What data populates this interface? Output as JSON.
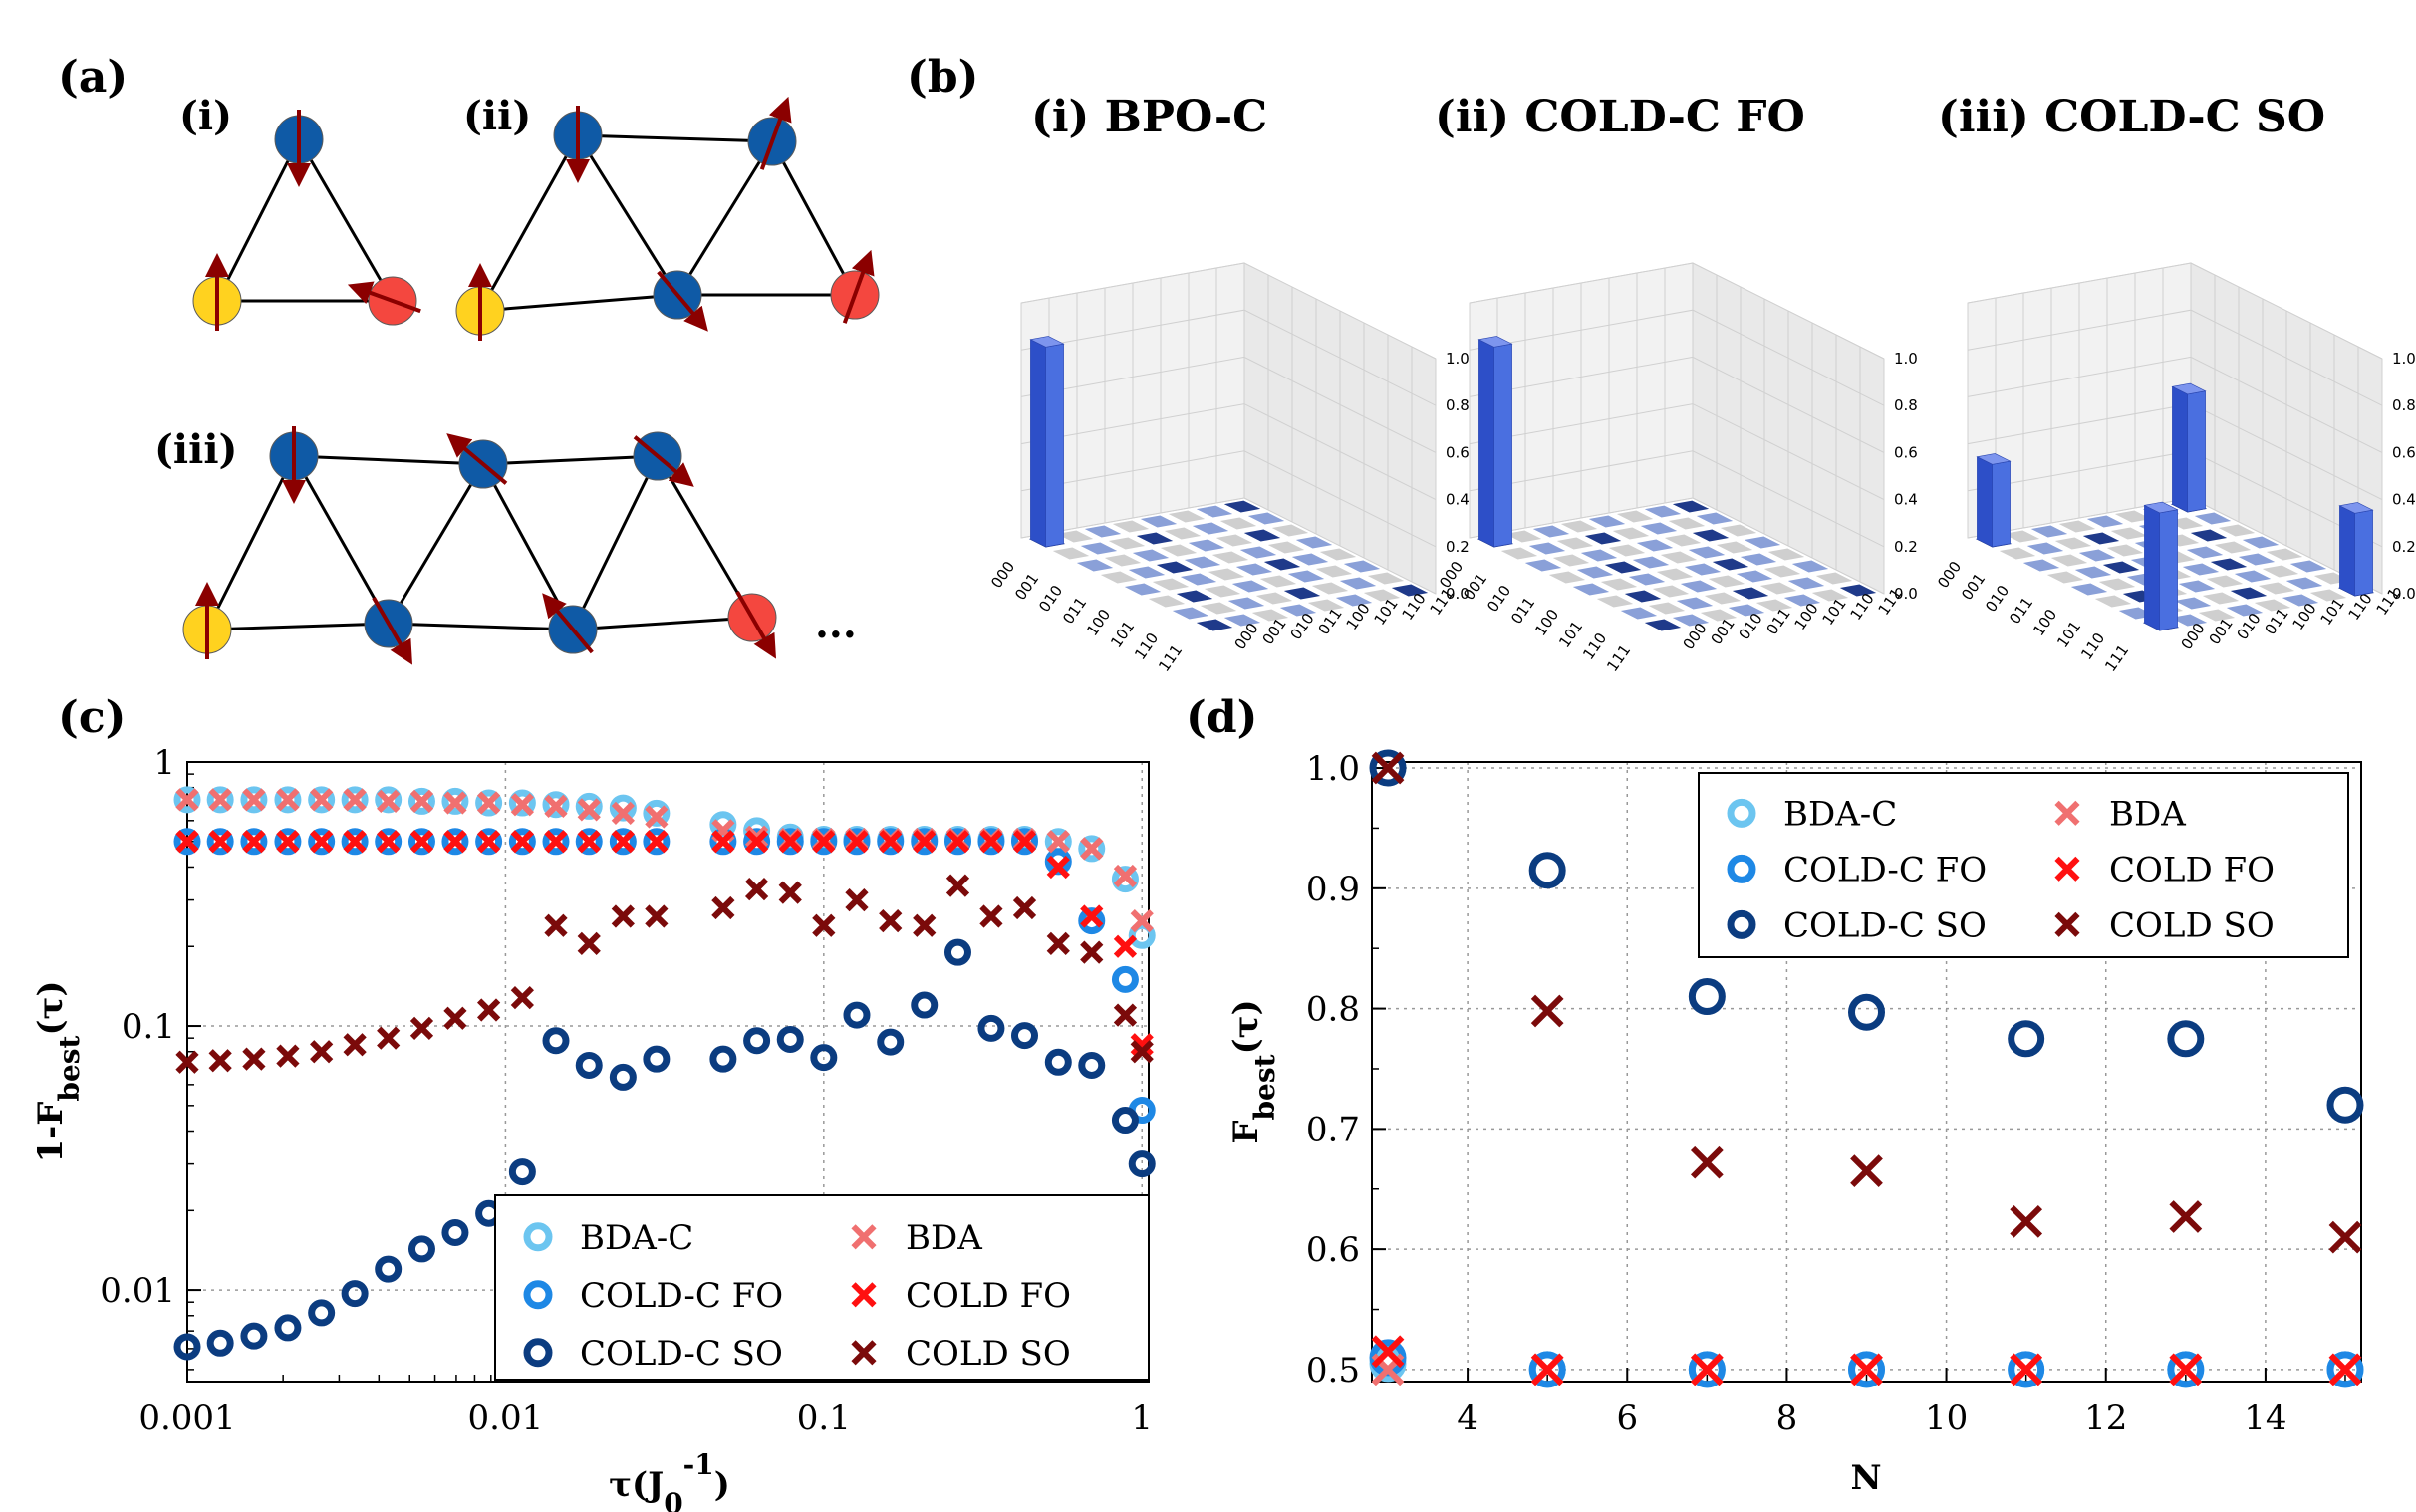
{
  "panels": {
    "a": {
      "label": "(a)",
      "subs": [
        "(i)",
        "(ii)",
        "(iii)"
      ],
      "ellipsis": "...",
      "colors": {
        "yellow": "#FFD21F",
        "blue": "#0F5AA6",
        "red": "#F4473F",
        "arrow": "#8B0000"
      }
    },
    "b": {
      "label": "(b)",
      "titles": [
        "(i) BPO-C",
        "(ii) COLD-C FO",
        "(iii) COLD-C SO"
      ],
      "xticks": [
        "000",
        "001",
        "010",
        "011",
        "100",
        "101",
        "110",
        "111"
      ],
      "yticks": [
        "000",
        "001",
        "010",
        "011",
        "100",
        "101",
        "110",
        "111"
      ],
      "zticks": [
        "0.0",
        "0.2",
        "0.4",
        "0.6",
        "0.8",
        "1.0"
      ]
    },
    "c": {
      "label": "(c)"
    },
    "d": {
      "label": "(d)"
    }
  },
  "chart_data": [
    {
      "type": "bar",
      "panel": "b-i",
      "title": "(i) BPO-C",
      "bars": [
        {
          "row": "000",
          "col": "000",
          "value": 0.85
        }
      ],
      "zlim": [
        0,
        1
      ]
    },
    {
      "type": "bar",
      "panel": "b-ii",
      "title": "(ii) COLD-C FO",
      "bars": [
        {
          "row": "000",
          "col": "000",
          "value": 0.85
        }
      ],
      "zlim": [
        0,
        1
      ]
    },
    {
      "type": "bar",
      "panel": "b-iii",
      "title": "(iii) COLD-C SO",
      "bars": [
        {
          "row": "000",
          "col": "000",
          "value": 0.35
        },
        {
          "row": "111",
          "col": "000",
          "value": 0.5
        },
        {
          "row": "000",
          "col": "111",
          "value": 0.5
        },
        {
          "row": "111",
          "col": "111",
          "value": 0.35
        }
      ],
      "zlim": [
        0,
        1
      ]
    },
    {
      "type": "scatter",
      "panel": "c",
      "xlabel": "τ(J0-1)",
      "ylabel": "1-Fbest(τ)",
      "xscale": "log",
      "yscale": "log",
      "xlim": [
        0.001,
        1.05
      ],
      "ylim": [
        0.0045,
        1.0
      ],
      "xticks": [
        {
          "v": 0.001,
          "label": "0.001"
        },
        {
          "v": 0.01,
          "label": "0.01"
        },
        {
          "v": 0.1,
          "label": "0.1"
        },
        {
          "v": 1,
          "label": "1"
        }
      ],
      "yticks": [
        {
          "v": 0.01,
          "label": "0.01"
        },
        {
          "v": 0.1,
          "label": "0.1"
        },
        {
          "v": 1,
          "label": "1"
        }
      ],
      "legend": "lower-right",
      "x": [
        0.001,
        0.00127,
        0.00162,
        0.00207,
        0.00264,
        0.00336,
        0.00428,
        0.00546,
        0.00695,
        0.00886,
        0.0113,
        0.0144,
        0.0183,
        0.0234,
        0.0298,
        0.0483,
        0.0616,
        0.0785,
        0.1,
        0.127,
        0.162,
        0.207,
        0.264,
        0.336,
        0.428,
        0.546,
        0.695,
        0.886,
        1.0
      ],
      "series": [
        {
          "name": "BDA-C",
          "marker": "circle",
          "color": "#6CC5F0",
          "values": [
            0.72,
            0.72,
            0.72,
            0.72,
            0.72,
            0.72,
            0.72,
            0.71,
            0.71,
            0.7,
            0.7,
            0.69,
            0.68,
            0.67,
            0.64,
            0.58,
            0.55,
            0.52,
            0.51,
            0.51,
            0.51,
            0.51,
            0.51,
            0.51,
            0.51,
            0.5,
            0.47,
            0.36,
            0.22
          ]
        },
        {
          "name": "COLD-C FO",
          "marker": "circle",
          "color": "#1E88E5",
          "values": [
            0.5,
            0.5,
            0.5,
            0.5,
            0.5,
            0.5,
            0.5,
            0.5,
            0.5,
            0.5,
            0.5,
            0.5,
            0.5,
            0.5,
            0.5,
            0.5,
            0.5,
            0.5,
            0.5,
            0.5,
            0.5,
            0.5,
            0.5,
            0.5,
            0.5,
            0.42,
            0.25,
            0.15,
            0.048
          ]
        },
        {
          "name": "COLD-C SO",
          "marker": "circle",
          "color": "#0B3C80",
          "values": [
            0.0061,
            0.0063,
            0.0067,
            0.0072,
            0.0082,
            0.0097,
            0.012,
            0.0143,
            0.0165,
            0.0195,
            0.028,
            0.088,
            0.071,
            0.064,
            0.075,
            0.075,
            0.088,
            0.089,
            0.076,
            0.11,
            0.087,
            0.12,
            0.19,
            0.098,
            0.092,
            0.073,
            0.071,
            0.044,
            0.03
          ]
        },
        {
          "name": "BDA",
          "marker": "x",
          "color": "#F07070",
          "values": [
            0.72,
            0.72,
            0.72,
            0.72,
            0.72,
            0.72,
            0.71,
            0.71,
            0.7,
            0.7,
            0.69,
            0.68,
            0.66,
            0.64,
            0.62,
            0.55,
            0.52,
            0.51,
            0.51,
            0.51,
            0.51,
            0.51,
            0.51,
            0.51,
            0.51,
            0.5,
            0.47,
            0.37,
            0.25
          ]
        },
        {
          "name": "COLD FO",
          "marker": "x",
          "color": "#FF1010",
          "values": [
            0.5,
            0.5,
            0.5,
            0.5,
            0.5,
            0.5,
            0.5,
            0.5,
            0.5,
            0.5,
            0.5,
            0.5,
            0.5,
            0.5,
            0.5,
            0.5,
            0.5,
            0.5,
            0.5,
            0.5,
            0.5,
            0.5,
            0.5,
            0.5,
            0.5,
            0.4,
            0.26,
            0.2,
            0.085
          ]
        },
        {
          "name": "COLD SO",
          "marker": "x",
          "color": "#7B0A0A",
          "values": [
            0.073,
            0.074,
            0.075,
            0.077,
            0.08,
            0.085,
            0.09,
            0.098,
            0.107,
            0.115,
            0.128,
            0.24,
            0.205,
            0.26,
            0.26,
            0.28,
            0.33,
            0.32,
            0.24,
            0.3,
            0.25,
            0.24,
            0.34,
            0.26,
            0.28,
            0.205,
            0.19,
            0.11,
            0.08
          ]
        }
      ]
    },
    {
      "type": "scatter",
      "panel": "d",
      "xlabel": "N",
      "ylabel": "Fbest(τ)",
      "xlim": [
        2.8,
        15.2
      ],
      "ylim": [
        0.49,
        1.005
      ],
      "xticks": [
        {
          "v": 4,
          "label": "4"
        },
        {
          "v": 6,
          "label": "6"
        },
        {
          "v": 8,
          "label": "8"
        },
        {
          "v": 10,
          "label": "10"
        },
        {
          "v": 12,
          "label": "12"
        },
        {
          "v": 14,
          "label": "14"
        }
      ],
      "yticks": [
        {
          "v": 0.5,
          "label": "0.5"
        },
        {
          "v": 0.6,
          "label": "0.6"
        },
        {
          "v": 0.7,
          "label": "0.7"
        },
        {
          "v": 0.8,
          "label": "0.8"
        },
        {
          "v": 0.9,
          "label": "0.9"
        },
        {
          "v": 1.0,
          "label": "1.0"
        }
      ],
      "legend": "top-right",
      "x": [
        3,
        5,
        7,
        9,
        11,
        13,
        15
      ],
      "series": [
        {
          "name": "BDA-C",
          "marker": "circle",
          "color": "#6CC5F0",
          "values": [
            0.505,
            0.5,
            0.5,
            0.5,
            0.5,
            0.5,
            0.5
          ]
        },
        {
          "name": "COLD-C FO",
          "marker": "circle",
          "color": "#1E88E5",
          "values": [
            0.51,
            0.5,
            0.5,
            0.5,
            0.5,
            0.5,
            0.5
          ]
        },
        {
          "name": "COLD-C SO",
          "marker": "circle",
          "color": "#0B3C80",
          "values": [
            1.0,
            0.915,
            0.81,
            0.797,
            0.775,
            0.775,
            0.72
          ]
        },
        {
          "name": "BDA",
          "marker": "x",
          "color": "#F07070",
          "values": [
            0.5,
            0.5,
            0.5,
            0.5,
            0.5,
            0.5,
            0.5
          ]
        },
        {
          "name": "COLD FO",
          "marker": "x",
          "color": "#FF1010",
          "values": [
            0.515,
            0.5,
            0.5,
            0.5,
            0.5,
            0.5,
            0.5
          ]
        },
        {
          "name": "COLD SO",
          "marker": "x",
          "color": "#7B0A0A",
          "values": [
            1.0,
            0.798,
            0.672,
            0.665,
            0.623,
            0.627,
            0.61
          ]
        }
      ]
    }
  ]
}
